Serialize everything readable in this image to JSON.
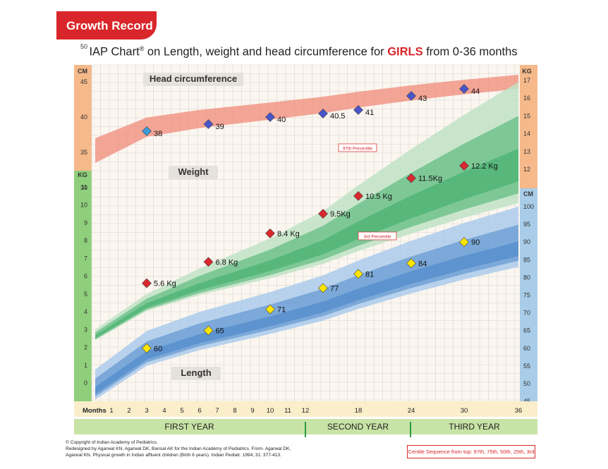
{
  "banner": "Growth Record",
  "title_prefix": "IAP Chart",
  "title_reg": "®",
  "title_mid": " on Length, weight and head circumference for ",
  "title_girls": "GIRLS",
  "title_suffix": " from 0-36 months",
  "colors": {
    "head_band": "#f08a78",
    "weight_band": "#3fae6a",
    "length_band": "#4a86c8",
    "cm_left_strip": "#f6b98a",
    "kg_left_strip": "#8fcf7c",
    "kg_right_strip": "#f6b98a",
    "cm_right_strip": "#a9cde8",
    "head_marker": "#4a55c9",
    "weight_marker": "#d9282e",
    "length_marker": "#ffe600",
    "head_first_marker": "#3a9bd8"
  },
  "chart_data": {
    "type": "scatter",
    "x_label": "Months",
    "x_ticks": [
      1,
      2,
      3,
      4,
      5,
      6,
      7,
      8,
      9,
      10,
      11,
      12,
      18,
      24,
      30,
      36
    ],
    "left_axis_cm": {
      "label": "CM",
      "ticks": [
        30,
        35,
        40,
        45,
        50
      ]
    },
    "left_axis_kg": {
      "label": "KG",
      "ticks": [
        0,
        1,
        2,
        3,
        4,
        5,
        6,
        7,
        8,
        9,
        10,
        11
      ]
    },
    "right_axis_kg": {
      "label": "KG",
      "ticks": [
        12,
        13,
        14,
        15,
        16,
        17
      ]
    },
    "right_axis_cm": {
      "label": "CM",
      "ticks": [
        45,
        50,
        55,
        60,
        65,
        70,
        75,
        80,
        85,
        90,
        95,
        100
      ]
    },
    "section_labels": [
      "Head circumference",
      "Weight",
      "Length"
    ],
    "percentile_labels": [
      "97th Percentile",
      "3rd Percentile"
    ],
    "series": [
      {
        "name": "Head circumference",
        "points": [
          {
            "month": 3,
            "value": 38,
            "label": "38"
          },
          {
            "month": 6.5,
            "value": 39,
            "label": "39"
          },
          {
            "month": 10,
            "value": 40,
            "label": "40"
          },
          {
            "month": 14,
            "value": 40.5,
            "label": "40.5"
          },
          {
            "month": 18,
            "value": 41,
            "label": "41"
          },
          {
            "month": 24,
            "value": 43,
            "label": "43"
          },
          {
            "month": 30,
            "value": 44,
            "label": "44"
          }
        ]
      },
      {
        "name": "Weight",
        "points": [
          {
            "month": 3,
            "value": 5.6,
            "label": "5.6 Kg"
          },
          {
            "month": 6.5,
            "value": 6.8,
            "label": "6.8 Kg"
          },
          {
            "month": 10,
            "value": 8.4,
            "label": "8.4 Kg"
          },
          {
            "month": 14,
            "value": 9.5,
            "label": "9.5Kg"
          },
          {
            "month": 18,
            "value": 10.5,
            "label": "10.5 Kg"
          },
          {
            "month": 24,
            "value": 11.5,
            "label": "11.5Kg"
          },
          {
            "month": 30,
            "value": 12.2,
            "label": "12.2 Kg"
          }
        ]
      },
      {
        "name": "Length",
        "points": [
          {
            "month": 3,
            "value": 60,
            "label": "60"
          },
          {
            "month": 6.5,
            "value": 65,
            "label": "65"
          },
          {
            "month": 10,
            "value": 71,
            "label": "71"
          },
          {
            "month": 14,
            "value": 77,
            "label": "77"
          },
          {
            "month": 18,
            "value": 81,
            "label": "81"
          },
          {
            "month": 24,
            "value": 84,
            "label": "84"
          },
          {
            "month": 30,
            "value": 90,
            "label": "90"
          }
        ]
      }
    ]
  },
  "year_labels": [
    "FIRST YEAR",
    "SECOND YEAR",
    "THIRD YEAR"
  ],
  "copyright_lines": [
    "© Copyright of Indian Academy of Pediatrics.",
    "Redesigned by Agarwal KN, Agarwal DK, Bansal AK for the Indian Academy of Pediatrics. From- Agarwal DK,",
    "Agarwal KN. Physical growth in Indian affluent children (Birth 6 years). Indian Pediatr. 1994, 31: 377-413."
  ],
  "centile_note": "Centile Sequence from top: 97th, 75th, 50th, 25th, 3rd"
}
